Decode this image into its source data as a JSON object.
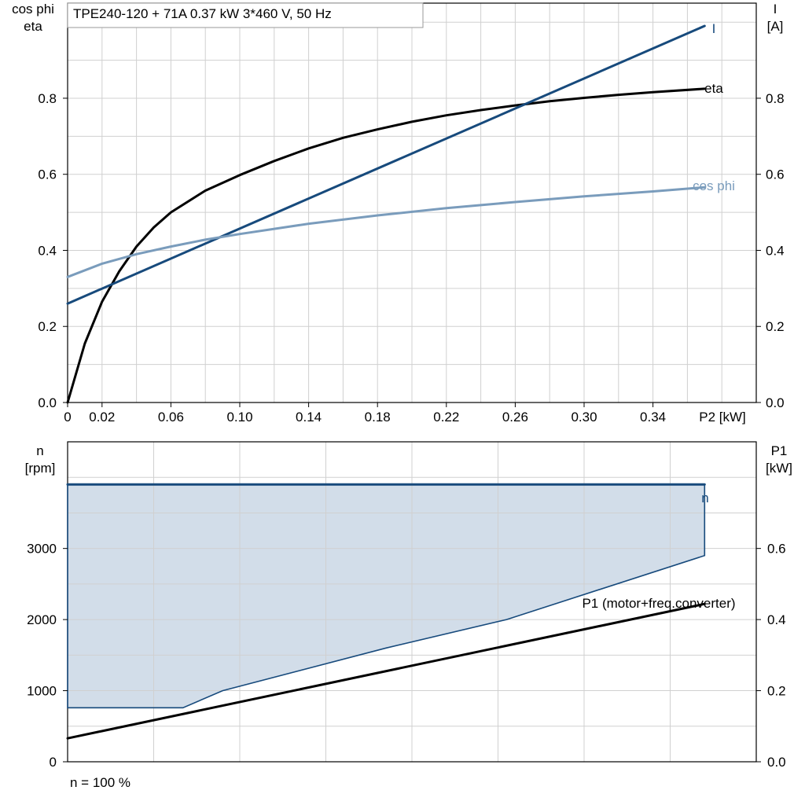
{
  "chart_data": [
    {
      "type": "line",
      "title": "TPE240-120 + 71A   0.37 kW   3*460 V, 50 Hz",
      "xlabel": "P2 [kW]",
      "x_ticks": [
        "0",
        "0.02",
        "0.06",
        "0.10",
        "0.14",
        "0.18",
        "0.22",
        "0.26",
        "0.30",
        "0.34"
      ],
      "xlim": [
        0,
        0.4
      ],
      "ylabel_left": [
        "cos phi",
        "eta"
      ],
      "ylabel_right": [
        "I",
        "[A]"
      ],
      "ylim_left": [
        0,
        1.05
      ],
      "ylim_right": [
        0,
        1.05
      ],
      "y_ticks_left": [
        "0.0",
        "0.2",
        "0.4",
        "0.6",
        "0.8"
      ],
      "y_ticks_right": [
        "0.0",
        "0.2",
        "0.4",
        "0.6",
        "0.8"
      ],
      "grid": true,
      "series": [
        {
          "name": "eta",
          "color": "#000000",
          "axis": "left",
          "x": [
            0,
            0.01,
            0.02,
            0.03,
            0.04,
            0.05,
            0.06,
            0.08,
            0.1,
            0.12,
            0.14,
            0.16,
            0.18,
            0.2,
            0.22,
            0.24,
            0.26,
            0.28,
            0.3,
            0.32,
            0.34,
            0.37
          ],
          "y": [
            0,
            0.155,
            0.265,
            0.345,
            0.41,
            0.46,
            0.5,
            0.557,
            0.598,
            0.635,
            0.668,
            0.696,
            0.718,
            0.738,
            0.755,
            0.769,
            0.781,
            0.792,
            0.801,
            0.809,
            0.816,
            0.825
          ]
        },
        {
          "name": "I",
          "color": "#174a7c",
          "axis": "right",
          "x": [
            0,
            0.37
          ],
          "y": [
            0.26,
            0.99
          ]
        },
        {
          "name": "cos phi",
          "color": "#7a9cbc",
          "axis": "left",
          "x": [
            0,
            0.02,
            0.04,
            0.06,
            0.08,
            0.1,
            0.14,
            0.18,
            0.22,
            0.26,
            0.3,
            0.34,
            0.37
          ],
          "y": [
            0.33,
            0.365,
            0.39,
            0.41,
            0.428,
            0.443,
            0.47,
            0.492,
            0.511,
            0.527,
            0.542,
            0.555,
            0.566
          ]
        }
      ]
    },
    {
      "type": "area",
      "xlim": [
        0,
        0.4
      ],
      "ylabel_left": [
        "n",
        "[rpm]"
      ],
      "ylabel_right": [
        "P1",
        "[kW]"
      ],
      "ylim_left": [
        0,
        4500
      ],
      "ylim_right": [
        0,
        0.9
      ],
      "y_ticks_left": [
        "0",
        "1000",
        "2000",
        "3000"
      ],
      "y_ticks_right": [
        "0.0",
        "0.2",
        "0.4",
        "0.6"
      ],
      "grid": true,
      "footnote": "n = 100 %",
      "series": [
        {
          "name": "n",
          "color": "#174a7c",
          "axis": "left",
          "x": [
            0,
            0.37
          ],
          "y": [
            3900,
            3900
          ]
        },
        {
          "name": "P1 (motor+freq.converter)",
          "color": "#000000",
          "axis": "right",
          "x": [
            0,
            0.37
          ],
          "y": [
            0.066,
            0.444
          ]
        }
      ],
      "operating_area": {
        "fill": "#d2dde9",
        "edge": "#174a7c",
        "axis": "left",
        "x": [
          0,
          0.37,
          0.37,
          0.255,
          0.185,
          0.09,
          0.067,
          0
        ],
        "y": [
          3900,
          3900,
          2900,
          2000,
          1600,
          1000,
          760,
          760
        ]
      }
    }
  ]
}
